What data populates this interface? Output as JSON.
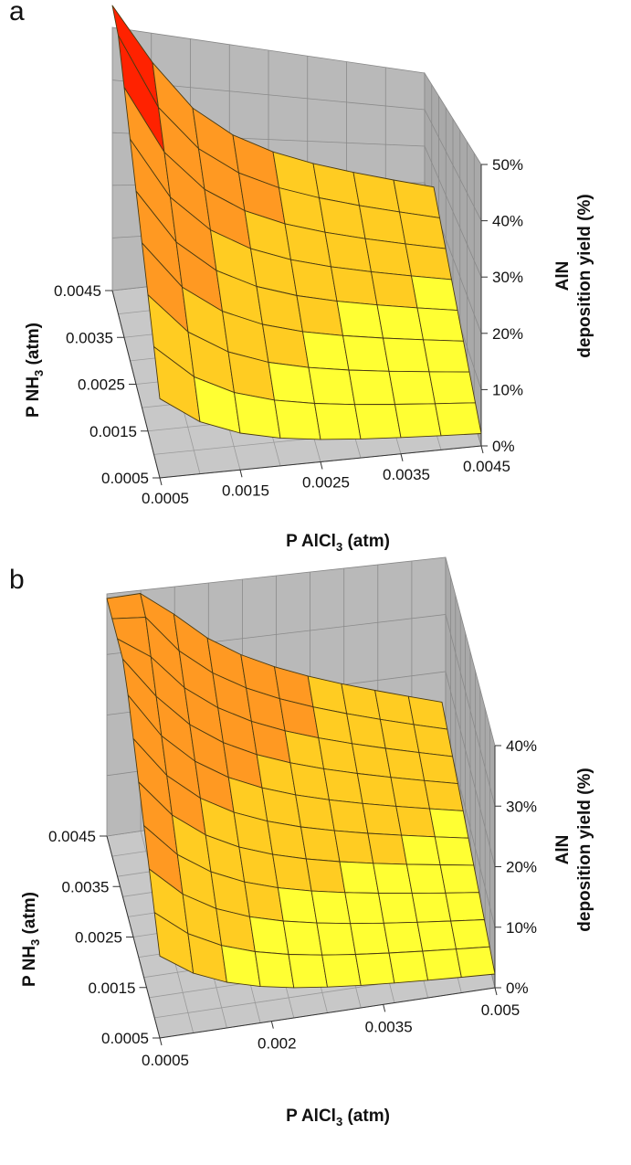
{
  "chart_data": [
    {
      "panel": "a",
      "type": "surface",
      "x_label_main": "P AlCl",
      "x_label_sub": "3",
      "x_label_unit": " (atm)",
      "y_label_main": "P NH",
      "y_label_sub": "3",
      "y_label_unit": " (atm)",
      "z_label_line1": "AlN",
      "z_label_line2": "deposition yield (%)",
      "x_ticks": [
        "0.0005",
        "0.0015",
        "0.0025",
        "0.0035",
        "0.0045"
      ],
      "y_ticks": [
        "0.0005",
        "0.0015",
        "0.0025",
        "0.0035",
        "0.0045"
      ],
      "z_ticks": [
        "0%",
        "10%",
        "20%",
        "30%",
        "40%",
        "50%"
      ],
      "xlim": [
        0.0005,
        0.0045
      ],
      "ylim": [
        0.0005,
        0.0045
      ],
      "zlim": [
        0,
        50
      ],
      "grid_points": 9,
      "yield_model": "surface rises sharply toward low P AlCl3 / high P NH3; values ~52% at corner, ~5% at high AlCl3 / low NH3",
      "band_colors": [
        "#ffff33",
        "#ffcc22",
        "#ff9922",
        "#ff2200"
      ],
      "band_limits": [
        0,
        10,
        20,
        40,
        60
      ]
    },
    {
      "panel": "b",
      "type": "surface",
      "x_label_main": "P AlCl",
      "x_label_sub": "3",
      "x_label_unit": " (atm)",
      "y_label_main": "P NH",
      "y_label_sub": "3",
      "y_label_unit": " (atm)",
      "z_label_line1": "AlN",
      "z_label_line2": "deposition yield (%)",
      "x_ticks": [
        "0.0005",
        "0.002",
        "0.0035",
        "0.005"
      ],
      "y_ticks": [
        "0.0005",
        "0.0015",
        "0.0025",
        "0.0035",
        "0.0045"
      ],
      "z_ticks": [
        "0%",
        "10%",
        "20%",
        "30%",
        "40%"
      ],
      "xlim": [
        0.0005,
        0.005
      ],
      "ylim": [
        0.0005,
        0.0045
      ],
      "zlim": [
        0,
        40
      ],
      "grid_points": 11,
      "band_colors": [
        "#ffff33",
        "#ffcc22",
        "#ff9922"
      ],
      "band_limits": [
        0,
        10,
        20,
        50
      ]
    }
  ],
  "labels": {
    "panel_a": "a",
    "panel_b": "b"
  }
}
